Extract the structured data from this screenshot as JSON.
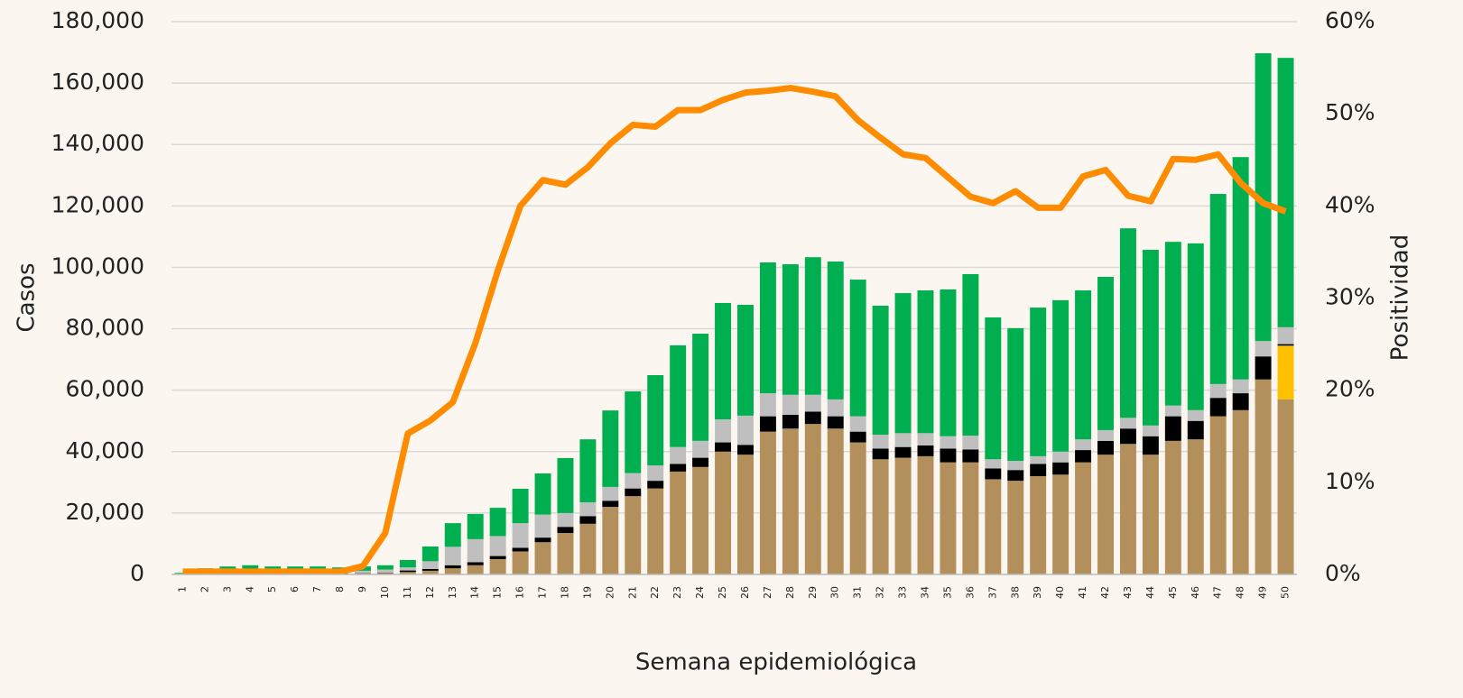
{
  "chart_data": {
    "type": "combo",
    "x_label": "Semana epidemiológica",
    "y_label": "Casos",
    "y2_label": "Positividad",
    "categories": [
      "1",
      "2",
      "3",
      "4",
      "5",
      "6",
      "7",
      "8",
      "9",
      "10",
      "11",
      "12",
      "13",
      "14",
      "15",
      "16",
      "17",
      "18",
      "19",
      "20",
      "21",
      "22",
      "23",
      "24",
      "25",
      "26",
      "27",
      "28",
      "29",
      "30",
      "31",
      "32",
      "33",
      "34",
      "35",
      "36",
      "37",
      "38",
      "39",
      "40",
      "41",
      "42",
      "43",
      "44",
      "45",
      "46",
      "47",
      "48",
      "49",
      "50"
    ],
    "ylim": [
      0,
      180000
    ],
    "yticks": [
      {
        "value": 0,
        "label": "0"
      },
      {
        "value": 20000,
        "label": "20,000"
      },
      {
        "value": 40000,
        "label": "40,000"
      },
      {
        "value": 60000,
        "label": "60,000"
      },
      {
        "value": 80000,
        "label": "80,000"
      },
      {
        "value": 100000,
        "label": "100,000"
      },
      {
        "value": 120000,
        "label": "120,000"
      },
      {
        "value": 140000,
        "label": "140,000"
      },
      {
        "value": 160000,
        "label": "160,000"
      },
      {
        "value": 180000,
        "label": "180,000"
      }
    ],
    "y2lim": [
      0,
      60
    ],
    "y2ticks": [
      {
        "value": 0,
        "label": "0%"
      },
      {
        "value": 10,
        "label": "10%"
      },
      {
        "value": 20,
        "label": "20%"
      },
      {
        "value": 30,
        "label": "30%"
      },
      {
        "value": 40,
        "label": "40%"
      },
      {
        "value": 50,
        "label": "50%"
      },
      {
        "value": 60,
        "label": "60%"
      }
    ],
    "grid": true,
    "series": [
      {
        "type": "bar",
        "color": "#b38f5c",
        "values": [
          100,
          200,
          200,
          200,
          200,
          200,
          200,
          200,
          300,
          500,
          800,
          1200,
          2000,
          3000,
          5000,
          7500,
          10500,
          13500,
          16500,
          22000,
          25500,
          28000,
          33500,
          35000,
          40000,
          39000,
          46500,
          47500,
          49000,
          47500,
          43000,
          37500,
          38000,
          38500,
          36500,
          36500,
          31000,
          30500,
          32000,
          32500,
          36500,
          39000,
          42500,
          39000,
          43500,
          44000,
          51500,
          53500,
          63500,
          57000
        ]
      },
      {
        "type": "bar",
        "color": "#ffc000",
        "values": [
          0,
          0,
          0,
          0,
          0,
          0,
          0,
          0,
          0,
          0,
          0,
          0,
          0,
          0,
          0,
          0,
          0,
          0,
          0,
          0,
          0,
          0,
          0,
          0,
          0,
          0,
          0,
          0,
          0,
          0,
          0,
          0,
          0,
          0,
          0,
          0,
          0,
          0,
          0,
          0,
          0,
          0,
          0,
          0,
          0,
          0,
          0,
          0,
          0,
          17500
        ]
      },
      {
        "type": "bar",
        "color": "#000000",
        "values": [
          0,
          100,
          100,
          100,
          100,
          100,
          100,
          100,
          100,
          100,
          500,
          600,
          1000,
          1000,
          1000,
          1200,
          1500,
          2000,
          2500,
          2000,
          2500,
          2500,
          2500,
          3000,
          3000,
          3200,
          5000,
          4500,
          4000,
          4000,
          3500,
          3500,
          3500,
          3500,
          4500,
          4200,
          3500,
          3500,
          4000,
          4000,
          4000,
          4500,
          5000,
          6000,
          8000,
          6000,
          6000,
          5500,
          7500,
          500
        ]
      },
      {
        "type": "bar",
        "color": "#bfbfbf",
        "values": [
          100,
          500,
          600,
          700,
          600,
          600,
          600,
          600,
          800,
          1000,
          1000,
          2500,
          6000,
          7500,
          6500,
          8000,
          7500,
          4500,
          4500,
          4500,
          5000,
          5000,
          5500,
          5500,
          7500,
          9500,
          7500,
          6500,
          5500,
          5500,
          5000,
          4500,
          4500,
          4000,
          4000,
          4500,
          3000,
          3000,
          2500,
          3500,
          3500,
          3500,
          3500,
          3500,
          3500,
          3500,
          4500,
          4500,
          5000,
          5500
        ]
      },
      {
        "type": "bar",
        "color": "#00b050",
        "values": [
          300,
          1200,
          1700,
          2000,
          1700,
          1700,
          1700,
          1400,
          1400,
          1400,
          2400,
          4800,
          7700,
          8200,
          9200,
          11200,
          13400,
          17900,
          20500,
          24900,
          26600,
          29400,
          33100,
          34900,
          37900,
          36100,
          42600,
          42500,
          44800,
          44900,
          44500,
          42000,
          45600,
          46500,
          47800,
          52600,
          46200,
          43200,
          48400,
          49300,
          48500,
          49900,
          61700,
          57200,
          53300,
          54300,
          61900,
          72400,
          93700,
          87700
        ]
      },
      {
        "type": "line",
        "axis": "y2",
        "color": "#ff8c00",
        "values": [
          0.3,
          0.3,
          0.3,
          0.3,
          0.3,
          0.3,
          0.3,
          0.3,
          0.9,
          4.5,
          15.3,
          16.7,
          18.7,
          25.1,
          33,
          40,
          42.8,
          42.3,
          44.2,
          46.8,
          48.8,
          48.6,
          50.4,
          50.4,
          51.5,
          52.3,
          52.5,
          52.8,
          52.4,
          51.9,
          49.3,
          47.4,
          45.6,
          45.2,
          43.1,
          41,
          40.3,
          41.6,
          39.8,
          39.8,
          43.2,
          43.9,
          41.1,
          40.5,
          45.1,
          45,
          45.6,
          42.5,
          40.3,
          39.4
        ]
      }
    ]
  }
}
